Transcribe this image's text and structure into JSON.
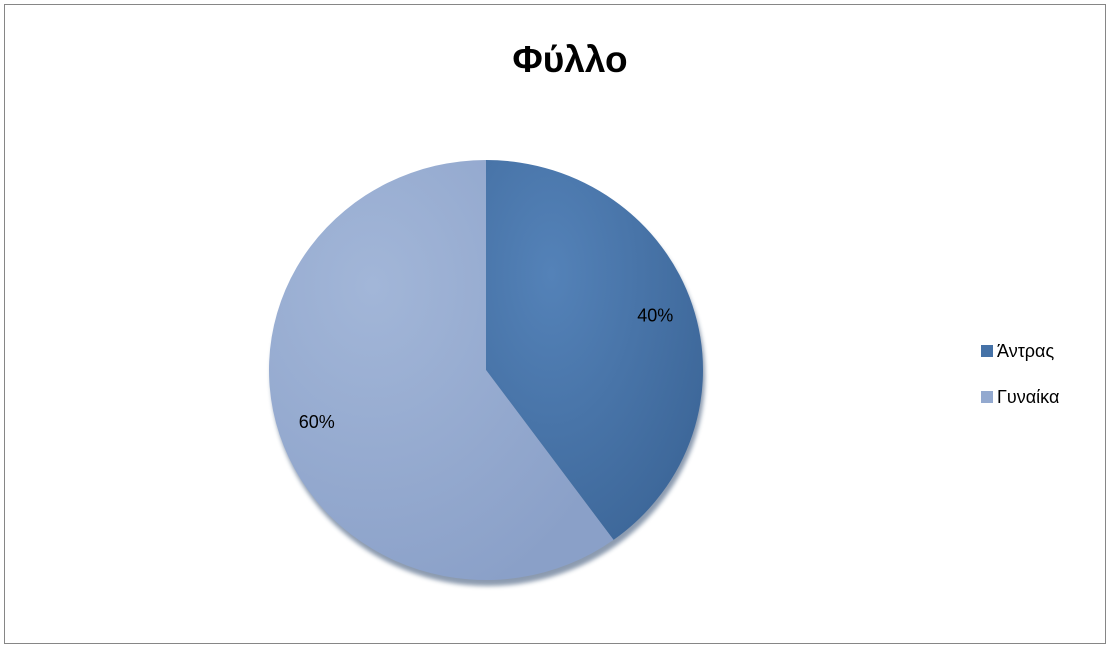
{
  "chart_data": {
    "type": "pie",
    "title": "Φύλλο",
    "categories": [
      "Άντρας",
      "Γυναίκα"
    ],
    "values": [
      40,
      60
    ],
    "data_labels": [
      "40%",
      "60%"
    ],
    "colors": [
      "#4572a7",
      "#93a9cf"
    ],
    "legend_position": "right"
  }
}
